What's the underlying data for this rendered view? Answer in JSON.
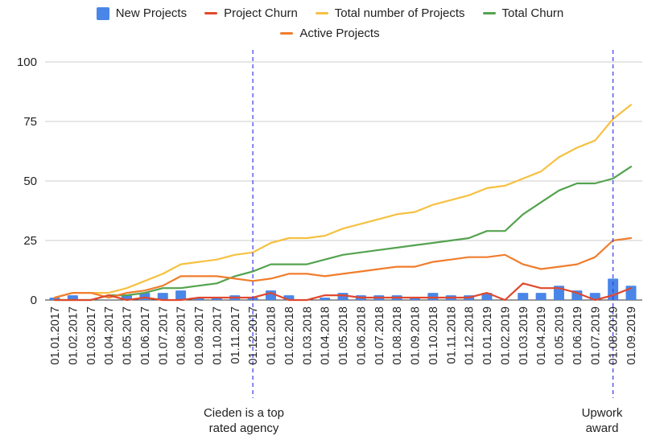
{
  "chart_data": {
    "type": "bar+line",
    "ylim": [
      0,
      100
    ],
    "yticks": [
      0,
      25,
      50,
      75,
      100
    ],
    "grid": true,
    "legend_position": "top-center",
    "categories": [
      "01.01.2017",
      "01.02.2017",
      "01.03.2017",
      "01.04.2017",
      "01.05.2017",
      "01.06.2017",
      "01.07.2017",
      "01.08.2017",
      "01.09.2017",
      "01.10.2017",
      "01.11.2017",
      "01.12.2017",
      "01.01.2018",
      "01.02.2018",
      "01.03.2018",
      "01.04.2018",
      "01.05.2018",
      "01.06.2018",
      "01.07.2018",
      "01.08.2018",
      "01.09.2018",
      "01.10.2018",
      "01.11.2018",
      "01.12.2018",
      "01.01.2019",
      "01.02.2019",
      "01.03.2019",
      "01.04.2019",
      "01.05.2019",
      "01.06.2019",
      "01.07.2019",
      "01.08.2019",
      "01.09.2019"
    ],
    "series": [
      {
        "name": "New Projects",
        "type": "bar",
        "color": "#4a86e8",
        "values": [
          1,
          2,
          0,
          0,
          2,
          3,
          3,
          4,
          1,
          1,
          2,
          1,
          4,
          2,
          0,
          1,
          3,
          2,
          2,
          2,
          1,
          3,
          2,
          2,
          3,
          0,
          3,
          3,
          6,
          4,
          3,
          9,
          6
        ]
      },
      {
        "name": "Project Churn",
        "type": "line",
        "color": "#e0492e",
        "values": [
          0,
          0,
          0,
          2,
          0,
          1,
          0,
          0,
          1,
          1,
          1,
          1,
          3,
          0,
          0,
          2,
          2,
          1,
          1,
          1,
          1,
          1,
          1,
          1,
          3,
          0,
          7,
          5,
          5,
          3,
          0,
          2,
          5
        ]
      },
      {
        "name": "Total number of Projects",
        "type": "line",
        "color": "#f6c142",
        "values": [
          1,
          3,
          3,
          3,
          5,
          8,
          11,
          15,
          16,
          17,
          19,
          20,
          24,
          26,
          26,
          27,
          30,
          32,
          34,
          36,
          37,
          40,
          42,
          44,
          47,
          48,
          51,
          54,
          60,
          64,
          67,
          76,
          82
        ]
      },
      {
        "name": "Total Churn",
        "type": "line",
        "color": "#54a34f",
        "values": [
          0,
          0,
          0,
          2,
          2,
          3,
          5,
          5,
          6,
          7,
          10,
          12,
          15,
          15,
          15,
          17,
          19,
          20,
          21,
          22,
          23,
          24,
          25,
          26,
          29,
          29,
          36,
          41,
          46,
          49,
          49,
          51,
          56
        ]
      },
      {
        "name": "Active Projects",
        "type": "line",
        "color": "#f07d2e",
        "values": [
          1,
          3,
          3,
          1,
          3,
          4,
          6,
          10,
          10,
          10,
          9,
          8,
          9,
          11,
          11,
          10,
          11,
          12,
          13,
          14,
          14,
          16,
          17,
          18,
          18,
          19,
          15,
          13,
          14,
          15,
          18,
          25,
          26
        ]
      }
    ],
    "annotations": [
      {
        "at": "01.12.2017",
        "style": "dashed",
        "color": "#3b3be8",
        "text": [
          "Cieden is a top",
          "rated agency"
        ]
      },
      {
        "at": "01.08.2019",
        "style": "dashed",
        "color": "#3b3be8",
        "text": [
          "Upwork",
          "award"
        ]
      }
    ]
  }
}
